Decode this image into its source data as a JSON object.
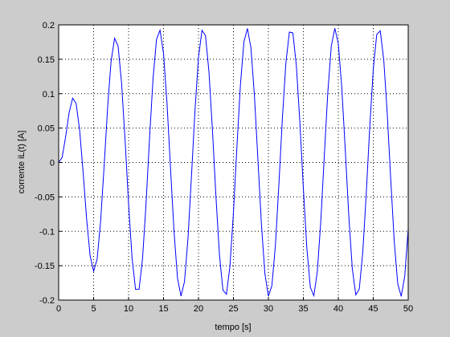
{
  "chart_data": {
    "type": "line",
    "xlabel": "tempo [s]",
    "ylabel": "corrente iL(t) [A]",
    "xlim": [
      0,
      50
    ],
    "xticks": [
      0,
      5,
      10,
      15,
      20,
      25,
      30,
      35,
      40,
      45,
      50
    ],
    "ylim": [
      -0.2,
      0.2
    ],
    "yticks": [
      -0.2,
      -0.15,
      -0.1,
      -0.05,
      0,
      0.05,
      0.1,
      0.15,
      0.2
    ],
    "grid": true,
    "series": [
      {
        "color": "#0000ff",
        "x": [
          0,
          0.5,
          1,
          1.5,
          2,
          2.5,
          3,
          3.5,
          4,
          4.5,
          5,
          5.5,
          6,
          6.5,
          7,
          7.5,
          8,
          8.5,
          9,
          9.5,
          10,
          10.5,
          11,
          11.5,
          12,
          12.5,
          13,
          13.5,
          14,
          14.5,
          15,
          15.5,
          16,
          16.5,
          17,
          17.5,
          18,
          18.5,
          19,
          19.5,
          20,
          20.5,
          21,
          21.5,
          22,
          22.5,
          23,
          23.5,
          24,
          24.5,
          25,
          25.5,
          26,
          26.5,
          27,
          27.5,
          28,
          28.5,
          29,
          29.5,
          30,
          30.5,
          31,
          31.5,
          32,
          32.5,
          33,
          33.5,
          34,
          34.5,
          35,
          35.5,
          36,
          36.5,
          37,
          37.5,
          38,
          38.5,
          39,
          39.5,
          40,
          40.5,
          41,
          41.5,
          42,
          42.5,
          43,
          43.5,
          44,
          44.5,
          45,
          45.5,
          46,
          46.5,
          47,
          47.5,
          48,
          48.5,
          49,
          49.5,
          50
        ],
        "values": [
          0,
          0.0074,
          0.0376,
          0.0727,
          0.0935,
          0.0857,
          0.0471,
          -0.0145,
          -0.0821,
          -0.1356,
          -0.158,
          -0.1407,
          -0.0857,
          -0.0057,
          0.0793,
          0.1473,
          0.1806,
          0.1692,
          0.1156,
          0.0325,
          -0.06,
          -0.139,
          -0.1844,
          -0.1844,
          -0.1396,
          -0.0597,
          0.0352,
          0.1219,
          0.179,
          0.1923,
          0.1584,
          0.0859,
          -0.0082,
          -0.1001,
          -0.1682,
          -0.1942,
          -0.1731,
          -0.1102,
          -0.0193,
          0.0759,
          0.1527,
          0.1921,
          0.1845,
          0.1316,
          0.0466,
          -0.0499,
          -0.1342,
          -0.1856,
          -0.1915,
          -0.1507,
          -0.0729,
          0.0228,
          0.1129,
          0.1753,
          0.1948,
          0.1667,
          0.0977,
          0.0049,
          -0.0893,
          -0.1617,
          -0.1942,
          -0.179,
          -0.1209,
          -0.0322,
          0.064,
          0.1445,
          0.1895,
          0.1884,
          0.1408,
          0.0589,
          -0.0372,
          -0.1244,
          -0.1812,
          -0.1936,
          -0.1585,
          -0.0846,
          0.0099,
          0.1022,
          0.1693,
          0.195,
          0.173,
          0.1086,
          0.0176,
          -0.0774,
          -0.1539,
          -0.1925,
          -0.1841,
          -0.1307,
          -0.0449,
          0.0517,
          0.1355,
          0.1862,
          0.1913,
          0.1494,
          0.0712,
          -0.0246,
          -0.1145,
          -0.1761,
          -0.1946,
          -0.1656,
          -0.0959
        ]
      }
    ]
  }
}
